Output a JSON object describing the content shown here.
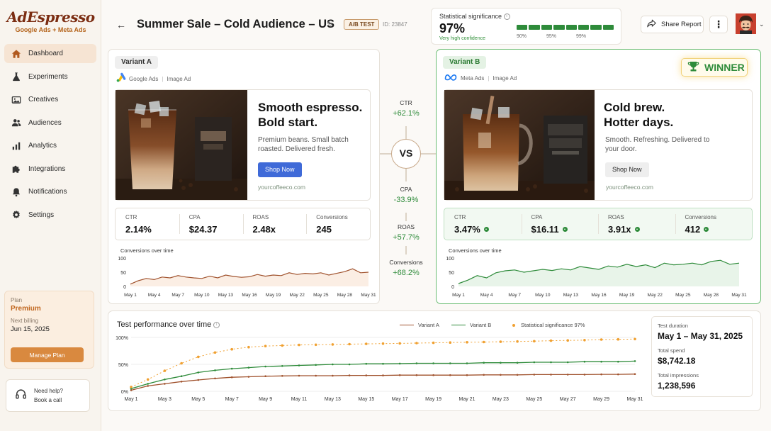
{
  "brand": {
    "name": "AdEspresso",
    "tagline": "Google Ads + Meta Ads"
  },
  "nav": [
    {
      "label": "Dashboard",
      "icon": "home-icon",
      "active": true
    },
    {
      "label": "Experiments",
      "icon": "flask-icon"
    },
    {
      "label": "Creatives",
      "icon": "image-icon"
    },
    {
      "label": "Audiences",
      "icon": "users-icon"
    },
    {
      "label": "Analytics",
      "icon": "bar-chart-icon"
    },
    {
      "label": "Integrations",
      "icon": "puzzle-icon"
    },
    {
      "label": "Notifications",
      "icon": "bell-icon"
    },
    {
      "label": "Settings",
      "icon": "gear-icon"
    }
  ],
  "plan": {
    "label": "Plan",
    "name": "Premium",
    "billing_label": "Next billing",
    "billing_date": "Jun 15, 2025",
    "button": "Manage Plan"
  },
  "help": {
    "line1": "Need help?",
    "line2": "Book a call"
  },
  "header": {
    "title": "Summer Sale – Cold Audience – US",
    "badge": "A/B TEST",
    "test_id": "ID: 23847",
    "share": "Share Report"
  },
  "significance": {
    "label": "Statistical significance",
    "value": "97%",
    "description": "Very high confidence",
    "ticks": [
      "90%",
      "95%",
      "99%"
    ],
    "level": 0.97
  },
  "variant_a": {
    "label": "Variant A",
    "platform": "Google Ads",
    "ad_type": "Image Ad",
    "headline_1": "Smooth espresso.",
    "headline_2": "Bold start.",
    "body": "Premium beans. Small batch roasted. Delivered fresh.",
    "cta": "Shop Now",
    "url": "yourcoffeeco.com",
    "metrics": [
      {
        "label": "CTR",
        "value": "2.14%"
      },
      {
        "label": "CPA",
        "value": "$24.37"
      },
      {
        "label": "ROAS",
        "value": "2.48x"
      },
      {
        "label": "Conversions",
        "value": "245"
      }
    ],
    "chart_title": "Conversions over time",
    "chart_y_ticks": [
      "100",
      "50",
      "0"
    ],
    "chart_x_ticks": [
      "May 1",
      "May 4",
      "May 7",
      "May 10",
      "May 13",
      "May 16",
      "May 19",
      "May 22",
      "May 25",
      "May 28",
      "May 31"
    ]
  },
  "variant_b": {
    "label": "Variant B",
    "platform": "Meta Ads",
    "ad_type": "Image Ad",
    "headline_1": "Cold brew.",
    "headline_2": "Hotter days.",
    "body": "Smooth. Refreshing. Delivered to your door.",
    "cta": "Shop Now",
    "url": "yourcoffeeco.com",
    "winner": "WINNER",
    "metrics": [
      {
        "label": "CTR",
        "value": "3.47%"
      },
      {
        "label": "CPA",
        "value": "$16.11"
      },
      {
        "label": "ROAS",
        "value": "3.91x"
      },
      {
        "label": "Conversions",
        "value": "412"
      }
    ],
    "chart_title": "Conversions over time",
    "chart_y_ticks": [
      "100",
      "50",
      "0"
    ],
    "chart_x_ticks": [
      "May 1",
      "May 4",
      "May 7",
      "May 10",
      "May 13",
      "May 16",
      "May 19",
      "May 22",
      "May 25",
      "May 28",
      "May 31"
    ]
  },
  "comparison": {
    "vs": "VS",
    "items": [
      {
        "label": "CTR",
        "value": "+62.1%"
      },
      {
        "label": "CPA",
        "value": "-33.9%"
      },
      {
        "label": "ROAS",
        "value": "+57.7%"
      },
      {
        "label": "Conversions",
        "value": "+68.2%"
      }
    ]
  },
  "performance": {
    "title": "Test performance over time",
    "legend": [
      "Variant A",
      "Variant B",
      "Statistical significance 97%"
    ],
    "y_ticks": [
      "100%",
      "50%",
      "0%"
    ],
    "x_ticks": [
      "May 1",
      "May 3",
      "May 5",
      "May 7",
      "May 9",
      "May 11",
      "May 13",
      "May 15",
      "May 17",
      "May 19",
      "May 21",
      "May 23",
      "May 25",
      "May 27",
      "May 29",
      "May 31"
    ]
  },
  "stats": [
    {
      "label": "Test duration",
      "value": "May 1 – May 31, 2025"
    },
    {
      "label": "Total spend",
      "value": "$8,742.18"
    },
    {
      "label": "Total impressions",
      "value": "1,238,596"
    }
  ],
  "colors": {
    "accent": "#d9893f",
    "variant_a": "#a0522d",
    "variant_b": "#2e8b3a",
    "significance": "#f0a030"
  },
  "chart_data": [
    {
      "type": "line",
      "title": "Conversions over time",
      "x": [
        "May 1",
        "May 2",
        "May 3",
        "May 4",
        "May 5",
        "May 6",
        "May 7",
        "May 8",
        "May 9",
        "May 10",
        "May 11",
        "May 12",
        "May 13",
        "May 14",
        "May 15",
        "May 16",
        "May 17",
        "May 18",
        "May 19",
        "May 20",
        "May 21",
        "May 22",
        "May 23",
        "May 24",
        "May 25",
        "May 26",
        "May 27",
        "May 28",
        "May 29",
        "May 30",
        "May 31"
      ],
      "series": [
        {
          "name": "Variant A",
          "values": [
            8,
            20,
            28,
            24,
            33,
            30,
            38,
            33,
            30,
            28,
            36,
            30,
            40,
            35,
            32,
            34,
            42,
            36,
            40,
            38,
            48,
            42,
            46,
            44,
            48,
            40,
            46,
            52,
            62,
            48,
            50
          ]
        }
      ],
      "ylim": [
        0,
        100
      ]
    },
    {
      "type": "line",
      "title": "Conversions over time",
      "x": [
        "May 1",
        "May 2",
        "May 3",
        "May 4",
        "May 5",
        "May 6",
        "May 7",
        "May 8",
        "May 9",
        "May 10",
        "May 11",
        "May 12",
        "May 13",
        "May 14",
        "May 15",
        "May 16",
        "May 17",
        "May 18",
        "May 19",
        "May 20",
        "May 21",
        "May 22",
        "May 23",
        "May 24",
        "May 25",
        "May 26",
        "May 27",
        "May 28",
        "May 29",
        "May 30",
        "May 31"
      ],
      "series": [
        {
          "name": "Variant B",
          "values": [
            10,
            22,
            38,
            30,
            48,
            55,
            58,
            50,
            55,
            60,
            56,
            62,
            58,
            70,
            65,
            60,
            72,
            68,
            78,
            70,
            76,
            66,
            82,
            76,
            78,
            82,
            76,
            88,
            92,
            78,
            82
          ]
        }
      ],
      "ylim": [
        0,
        100
      ]
    },
    {
      "type": "line",
      "title": "Test performance over time",
      "x": [
        "May 1",
        "May 2",
        "May 3",
        "May 4",
        "May 5",
        "May 6",
        "May 7",
        "May 8",
        "May 9",
        "May 10",
        "May 11",
        "May 12",
        "May 13",
        "May 14",
        "May 15",
        "May 16",
        "May 17",
        "May 18",
        "May 19",
        "May 20",
        "May 21",
        "May 22",
        "May 23",
        "May 24",
        "May 25",
        "May 26",
        "May 27",
        "May 28",
        "May 29",
        "May 30",
        "May 31"
      ],
      "series": [
        {
          "name": "Variant A",
          "values": [
            2,
            10,
            14,
            18,
            21,
            24,
            26,
            27,
            28,
            28.5,
            29,
            29,
            29,
            29.5,
            29.5,
            29.5,
            30,
            30,
            30,
            30,
            30,
            30.5,
            30.5,
            30.5,
            31,
            31,
            31,
            31,
            31.5,
            31.5,
            32
          ]
        },
        {
          "name": "Variant B",
          "values": [
            5,
            14,
            22,
            28,
            35,
            39,
            42,
            44,
            46,
            47,
            48,
            49,
            50,
            50,
            51,
            51,
            51.5,
            52,
            52,
            52,
            52,
            53,
            53,
            53,
            54,
            54,
            54,
            55,
            55,
            55,
            56
          ]
        },
        {
          "name": "Statistical significance 97%",
          "values": [
            8,
            22,
            38,
            52,
            64,
            72,
            78,
            82,
            84,
            85,
            86,
            86.5,
            87,
            87.5,
            88,
            88.5,
            89,
            89.5,
            90,
            90.5,
            91,
            91.5,
            92,
            92.5,
            93,
            94,
            94.5,
            95,
            96,
            96.5,
            97
          ]
        }
      ],
      "ylim": [
        0,
        100
      ]
    }
  ]
}
